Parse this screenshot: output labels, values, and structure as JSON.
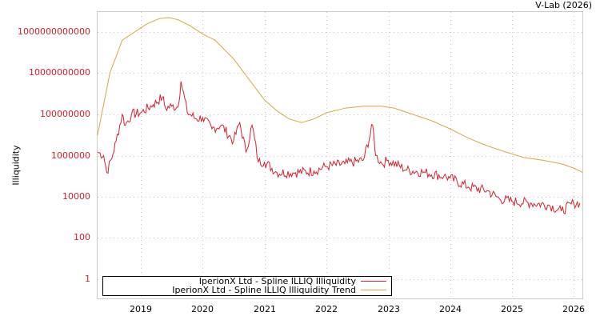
{
  "credit": "V-Lab (2026)",
  "chart_data": {
    "type": "line",
    "title": "",
    "xlabel": "",
    "ylabel": "Illiquidity",
    "yscale": "log",
    "y_ticks": [
      "1000000000000",
      "10000000000",
      "100000000",
      "1000000",
      "10000",
      "100",
      "1"
    ],
    "x_ticks": [
      "2019",
      "2020",
      "2021",
      "2022",
      "2023",
      "2024",
      "2025",
      "2026"
    ],
    "xlim": [
      2018.3,
      2026.15
    ],
    "ylim": [
      0.1,
      10000000000000.0
    ],
    "grid": true,
    "legend_position": "bottom-left inside plot",
    "series": [
      {
        "name": "IperionX Ltd - Spline ILLIQ Illiquidity",
        "color": "#d62230",
        "x": [
          2018.3,
          2018.4,
          2018.45,
          2018.55,
          2018.6,
          2018.7,
          2018.75,
          2018.85,
          2019.0,
          2019.2,
          2019.35,
          2019.4,
          2019.5,
          2019.6,
          2019.65,
          2019.75,
          2019.9,
          2020.0,
          2020.15,
          2020.3,
          2020.5,
          2020.6,
          2020.7,
          2020.8,
          2020.9,
          2021.0,
          2021.2,
          2021.5,
          2021.8,
          2022.0,
          2022.3,
          2022.6,
          2022.75,
          2022.8,
          2022.9,
          2023.0,
          2023.3,
          2023.6,
          2023.9,
          2024.0,
          2024.3,
          2024.6,
          2024.8,
          2025.0,
          2025.3,
          2025.6,
          2025.8,
          2026.0,
          2026.1
        ],
        "values": [
          1500000,
          1000000,
          150000,
          1200000,
          5000000,
          100000000.0,
          30000000.0,
          100000000.0,
          120000000.0,
          300000000.0,
          700000000.0,
          200000000.0,
          250000000.0,
          230000000.0,
          4000000000.0,
          130000000.0,
          60000000.0,
          70000000.0,
          20000000.0,
          30000000.0,
          5000000.0,
          40000000.0,
          1500000.0,
          30000000.0,
          500000.0,
          500000.0,
          150000.0,
          150000.0,
          180000.0,
          300000.0,
          400000.0,
          600000.0,
          30000000.0,
          1000000.0,
          400000.0,
          600000.0,
          200000.0,
          150000.0,
          100000.0,
          80000.0,
          30000.0,
          20000.0,
          8000.0,
          6000.0,
          5000.0,
          4000.0,
          2000.0,
          5000.0,
          5000.0
        ]
      },
      {
        "name": "IperionX Ltd - Spline ILLIQ Illiquidity Trend",
        "color": "#d4a843",
        "x": [
          2018.3,
          2018.5,
          2018.7,
          2018.9,
          2019.1,
          2019.3,
          2019.45,
          2019.6,
          2019.8,
          2020.0,
          2020.2,
          2020.5,
          2020.75,
          2021.0,
          2021.2,
          2021.4,
          2021.6,
          2021.8,
          2022.0,
          2022.3,
          2022.6,
          2022.9,
          2023.1,
          2023.4,
          2023.7,
          2024.0,
          2024.3,
          2024.6,
          2024.9,
          2025.2,
          2025.5,
          2025.8,
          2026.0,
          2026.15
        ],
        "values": [
          10000000.0,
          10000000000.0,
          400000000000.0,
          1000000000000.0,
          2500000000000.0,
          4500000000000.0,
          5000000000000.0,
          4000000000000.0,
          2000000000000.0,
          800000000000.0,
          400000000000.0,
          50000000000.0,
          5000000000.0,
          500000000.0,
          150000000.0,
          60000000.0,
          40000000.0,
          60000000.0,
          120000000.0,
          200000000.0,
          250000000.0,
          250000000.0,
          200000000.0,
          100000000.0,
          50000000.0,
          20000000.0,
          7000000.0,
          3000000.0,
          1500000.0,
          800000.0,
          600000.0,
          400000.0,
          250000.0,
          150000.0
        ]
      }
    ]
  }
}
